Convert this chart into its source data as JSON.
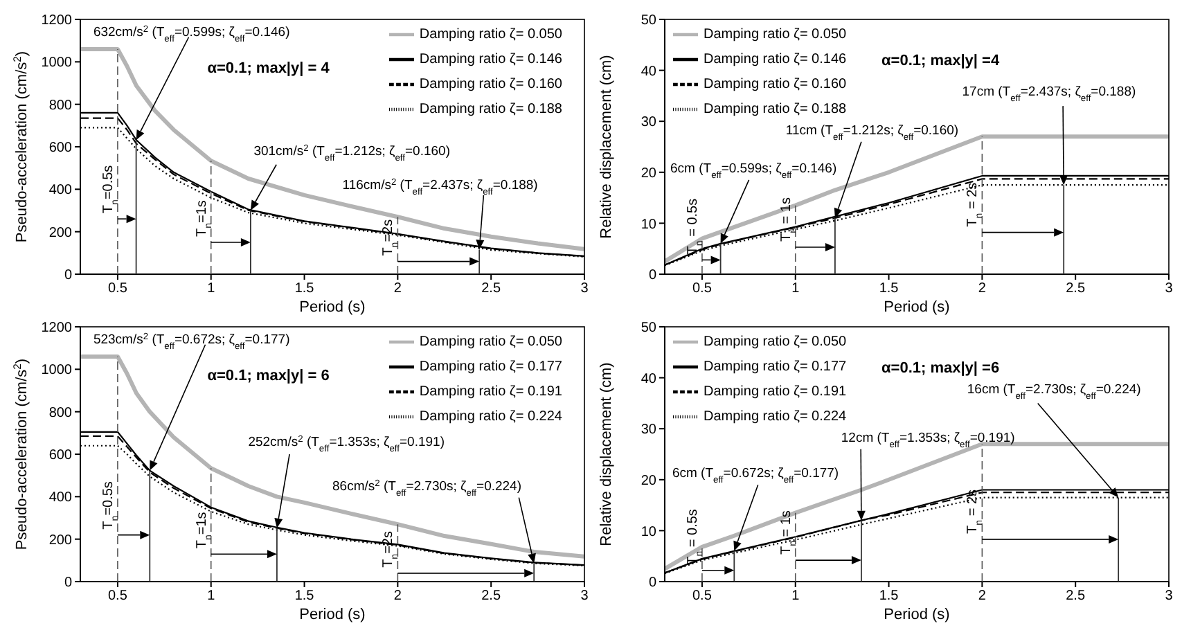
{
  "chart_data": [
    {
      "type": "line",
      "xlabel": "Period (s)",
      "ylabel": "Pseudo-acceleration (cm/s$^{2}$)",
      "xlim": [
        0.3,
        3
      ],
      "xticks": [
        0.5,
        1,
        1.5,
        2,
        2.5,
        3
      ],
      "ylim": [
        0,
        1200
      ],
      "yticks": [
        0,
        200,
        400,
        600,
        800,
        1000,
        1200
      ],
      "legend": "top right",
      "series": [
        {
          "name": "Damping ratio ζ= 0.050",
          "color": "#b4b4b4",
          "line_style": "solid",
          "x": [
            0.3,
            0.5,
            0.55,
            0.6,
            0.7,
            0.8,
            1,
            1.2,
            1.5,
            1.75,
            2,
            2.25,
            2.5,
            2.75,
            3
          ],
          "values": [
            1060,
            1060,
            980,
            888,
            770,
            680,
            534,
            450,
            372,
            320,
            270,
            215,
            177,
            145,
            118
          ]
        },
        {
          "name": "Damping ratio ζ= 0.146",
          "color": "#000000",
          "line_style": "solid",
          "x": [
            0.3,
            0.5,
            0.55,
            0.6,
            0.7,
            0.8,
            1,
            1.2,
            1.5,
            1.75,
            2,
            2.25,
            2.5,
            2.75,
            3
          ],
          "values": [
            760,
            760,
            700,
            632,
            550,
            480,
            389,
            305,
            250,
            220,
            190,
            155,
            122,
            100,
            85
          ]
        },
        {
          "name": "Damping ratio ζ= 0.160",
          "color": "#000000",
          "line_style": "dashed",
          "x": [
            0.3,
            0.5,
            0.55,
            0.6,
            0.7,
            0.8,
            1,
            1.2,
            1.5,
            1.75,
            2,
            2.25,
            2.5,
            2.75,
            3
          ],
          "values": [
            735,
            735,
            680,
            615,
            540,
            470,
            380,
            301,
            248,
            218,
            188,
            153,
            120,
            99,
            84
          ]
        },
        {
          "name": "Damping ratio ζ= 0.188",
          "color": "#000000",
          "line_style": "dotted",
          "x": [
            0.3,
            0.5,
            0.55,
            0.6,
            0.7,
            0.8,
            1,
            1.2,
            1.5,
            1.75,
            2,
            2.25,
            2.5,
            2.75,
            3
          ],
          "values": [
            690,
            690,
            640,
            590,
            510,
            450,
            360,
            290,
            240,
            212,
            184,
            150,
            114,
            97,
            82
          ]
        }
      ],
      "ref_lines": [
        {
          "axis": "x",
          "value": 0.5,
          "label": "T$_{n}$=0.5s",
          "line_style": "dashed"
        },
        {
          "axis": "x",
          "value": 1,
          "label": "T$_{n}$=1s",
          "line_style": "dashed"
        },
        {
          "axis": "x",
          "value": 2,
          "label": "T$_{n}$=2s",
          "line_style": "dashed"
        }
      ],
      "annotations": [
        "α=0.1; max|y| = 4",
        {
          "text": "632cm/s$^{2}$ (T$_{eff}$=0.599s; ζ$_{eff}$=0.146)",
          "x": 0.599,
          "y": 632
        },
        {
          "text": "301cm/s$^{2}$ (T$_{eff}$=1.212s; ζ$_{eff}$=0.160)",
          "x": 1.212,
          "y": 301
        },
        {
          "text": "116cm/s$^{2}$ (T$_{eff}$=2.437s; ζ$_{eff}$=0.188)",
          "x": 2.437,
          "y": 116
        }
      ]
    },
    {
      "type": "line",
      "xlabel": "Period (s)",
      "ylabel": "Relative displacement (cm)",
      "xlim": [
        0.3,
        3
      ],
      "xticks": [
        0.5,
        1,
        1.5,
        2,
        2.5,
        3
      ],
      "ylim": [
        0,
        50
      ],
      "yticks": [
        0,
        10,
        20,
        30,
        40,
        50
      ],
      "legend": "top left",
      "series": [
        {
          "name": "Damping ratio ζ= 0.050",
          "color": "#b4b4b4",
          "line_style": "solid",
          "x": [
            0.3,
            0.5,
            0.6,
            1,
            1.212,
            1.5,
            2,
            3
          ],
          "values": [
            2.5,
            7,
            8.3,
            13.5,
            16.5,
            20,
            27,
            27
          ]
        },
        {
          "name": "Damping ratio ζ= 0.146",
          "color": "#000000",
          "line_style": "solid",
          "x": [
            0.3,
            0.5,
            0.6,
            1,
            1.212,
            1.5,
            2,
            3
          ],
          "values": [
            1.8,
            5,
            6,
            9.3,
            11.3,
            14,
            19.3,
            19.3
          ]
        },
        {
          "name": "Damping ratio ζ= 0.160",
          "color": "#000000",
          "line_style": "dashed",
          "x": [
            0.3,
            0.5,
            0.6,
            1,
            1.212,
            1.5,
            2,
            3
          ],
          "values": [
            1.8,
            4.8,
            5.9,
            9.2,
            11,
            13.7,
            18.7,
            18.7
          ]
        },
        {
          "name": "Damping ratio ζ= 0.188",
          "color": "#000000",
          "line_style": "dotted",
          "x": [
            0.3,
            0.5,
            0.6,
            1,
            1.212,
            1.5,
            2,
            3
          ],
          "values": [
            1.7,
            4.6,
            5.6,
            8.8,
            10.5,
            13,
            17.5,
            17.5
          ]
        }
      ],
      "ref_lines": [
        {
          "axis": "x",
          "value": 0.5,
          "label": "T$_{n}$ = 0.5s",
          "line_style": "dashed"
        },
        {
          "axis": "x",
          "value": 1,
          "label": "T$_{n}$ = 1s",
          "line_style": "dashed"
        },
        {
          "axis": "x",
          "value": 2,
          "label": "T$_{n}$ = 2s",
          "line_style": "dashed"
        }
      ],
      "annotations": [
        "α=0.1; max|y| =4",
        {
          "text": "6cm (T$_{eff}$=0.599s; ζ$_{eff}$=0.146)",
          "x": 0.599,
          "y": 6
        },
        {
          "text": "11cm (T$_{eff}$=1.212s; ζ$_{eff}$=0.160)",
          "x": 1.212,
          "y": 11
        },
        {
          "text": "17cm (T$_{eff}$=2.437s; ζ$_{eff}$=0.188)",
          "x": 2.437,
          "y": 17.5
        }
      ]
    },
    {
      "type": "line",
      "xlabel": "Period (s)",
      "ylabel": "Pseudo-acceleration (cm/s$^{2}$)",
      "xlim": [
        0.3,
        3
      ],
      "xticks": [
        0.5,
        1,
        1.5,
        2,
        2.5,
        3
      ],
      "ylim": [
        0,
        1200
      ],
      "yticks": [
        0,
        200,
        400,
        600,
        800,
        1000,
        1200
      ],
      "legend": "top right",
      "series": [
        {
          "name": "Damping ratio ζ= 0.050",
          "color": "#b4b4b4",
          "line_style": "solid",
          "x": [
            0.3,
            0.5,
            0.55,
            0.6,
            0.672,
            0.8,
            1,
            1.2,
            1.353,
            1.5,
            1.75,
            2,
            2.25,
            2.5,
            2.73,
            3
          ],
          "values": [
            1060,
            1060,
            980,
            888,
            800,
            680,
            534,
            450,
            400,
            372,
            320,
            270,
            215,
            177,
            140,
            118
          ]
        },
        {
          "name": "Damping ratio ζ= 0.177",
          "color": "#000000",
          "line_style": "solid",
          "x": [
            0.3,
            0.5,
            0.55,
            0.6,
            0.672,
            0.8,
            1,
            1.2,
            1.353,
            1.5,
            1.75,
            2,
            2.25,
            2.5,
            2.73,
            3
          ],
          "values": [
            705,
            705,
            650,
            595,
            523,
            450,
            350,
            285,
            255,
            230,
            200,
            175,
            135,
            110,
            90,
            78
          ]
        },
        {
          "name": "Damping ratio ζ= 0.191",
          "color": "#000000",
          "line_style": "dashed",
          "x": [
            0.3,
            0.5,
            0.55,
            0.6,
            0.672,
            0.8,
            1,
            1.2,
            1.353,
            1.5,
            1.75,
            2,
            2.25,
            2.5,
            2.73,
            3
          ],
          "values": [
            685,
            685,
            635,
            585,
            515,
            440,
            345,
            280,
            252,
            227,
            198,
            172,
            133,
            108,
            89,
            77
          ]
        },
        {
          "name": "Damping ratio ζ= 0.224",
          "color": "#000000",
          "line_style": "dotted",
          "x": [
            0.3,
            0.5,
            0.55,
            0.6,
            0.672,
            0.8,
            1,
            1.2,
            1.353,
            1.5,
            1.75,
            2,
            2.25,
            2.5,
            2.73,
            3
          ],
          "values": [
            640,
            640,
            600,
            555,
            495,
            420,
            330,
            270,
            243,
            220,
            192,
            168,
            130,
            105,
            86,
            75
          ]
        }
      ],
      "ref_lines": [
        {
          "axis": "x",
          "value": 0.5,
          "label": "T$_{n}$=0.5s",
          "line_style": "dashed"
        },
        {
          "axis": "x",
          "value": 1,
          "label": "T$_{n}$=1s",
          "line_style": "dashed"
        },
        {
          "axis": "x",
          "value": 2,
          "label": "T$_{n}$=2s",
          "line_style": "dashed"
        }
      ],
      "annotations": [
        "α=0.1; max|y| = 6",
        {
          "text": "523cm/s$^{2}$ (T$_{eff}$=0.672s; ζ$_{eff}$=0.177)",
          "x": 0.672,
          "y": 523
        },
        {
          "text": "252cm/s$^{2}$ (T$_{eff}$=1.353s; ζ$_{eff}$=0.191)",
          "x": 1.353,
          "y": 252
        },
        {
          "text": "86cm/s$^{2}$ (T$_{eff}$=2.730s; ζ$_{eff}$=0.224)",
          "x": 2.73,
          "y": 86
        }
      ]
    },
    {
      "type": "line",
      "xlabel": "Period (s)",
      "ylabel": "Relative displacement (cm)",
      "xlim": [
        0.3,
        3
      ],
      "xticks": [
        0.5,
        1,
        1.5,
        2,
        2.5,
        3
      ],
      "ylim": [
        0,
        50
      ],
      "yticks": [
        0,
        10,
        20,
        30,
        40,
        50
      ],
      "legend": "top left",
      "series": [
        {
          "name": "Damping ratio ζ= 0.050",
          "color": "#b4b4b4",
          "line_style": "solid",
          "x": [
            0.3,
            0.5,
            0.672,
            1,
            1.353,
            1.5,
            2,
            3
          ],
          "values": [
            2.5,
            6.8,
            9,
            13.5,
            18,
            20,
            27,
            27
          ]
        },
        {
          "name": "Damping ratio ζ= 0.177",
          "color": "#000000",
          "line_style": "solid",
          "x": [
            0.3,
            0.5,
            0.672,
            1,
            1.353,
            1.5,
            2,
            3
          ],
          "values": [
            1.7,
            4.5,
            6,
            8.8,
            12,
            13.3,
            18,
            18
          ]
        },
        {
          "name": "Damping ratio ζ= 0.191",
          "color": "#000000",
          "line_style": "dashed",
          "x": [
            0.3,
            0.5,
            0.672,
            1,
            1.353,
            1.5,
            2,
            3
          ],
          "values": [
            1.7,
            4.4,
            5.9,
            8.7,
            12,
            13.1,
            17.5,
            17.5
          ]
        },
        {
          "name": "Damping ratio ζ= 0.224",
          "color": "#000000",
          "line_style": "dotted",
          "x": [
            0.3,
            0.5,
            0.672,
            1,
            1.353,
            1.5,
            2,
            3
          ],
          "values": [
            1.6,
            4.2,
            5.6,
            8.2,
            11.2,
            12.4,
            16.5,
            16.5
          ]
        }
      ],
      "ref_lines": [
        {
          "axis": "x",
          "value": 0.5,
          "label": "T$_{n}$ = 0.5s",
          "line_style": "dashed"
        },
        {
          "axis": "x",
          "value": 1,
          "label": "T$_{n}$ = 1s",
          "line_style": "dashed"
        },
        {
          "axis": "x",
          "value": 2,
          "label": "T$_{n}$ = 2s",
          "line_style": "dashed"
        }
      ],
      "annotations": [
        "α=0.1; max|y| =6",
        {
          "text": "6cm (T$_{eff}$=0.672s; ζ$_{eff}$=0.177)",
          "x": 0.672,
          "y": 6
        },
        {
          "text": "12cm (T$_{eff}$=1.353s; ζ$_{eff}$=0.191)",
          "x": 1.353,
          "y": 12
        },
        {
          "text": "16cm (T$_{eff}$=2.730s; ζ$_{eff}$=0.224)",
          "x": 2.73,
          "y": 16.5
        }
      ]
    }
  ]
}
